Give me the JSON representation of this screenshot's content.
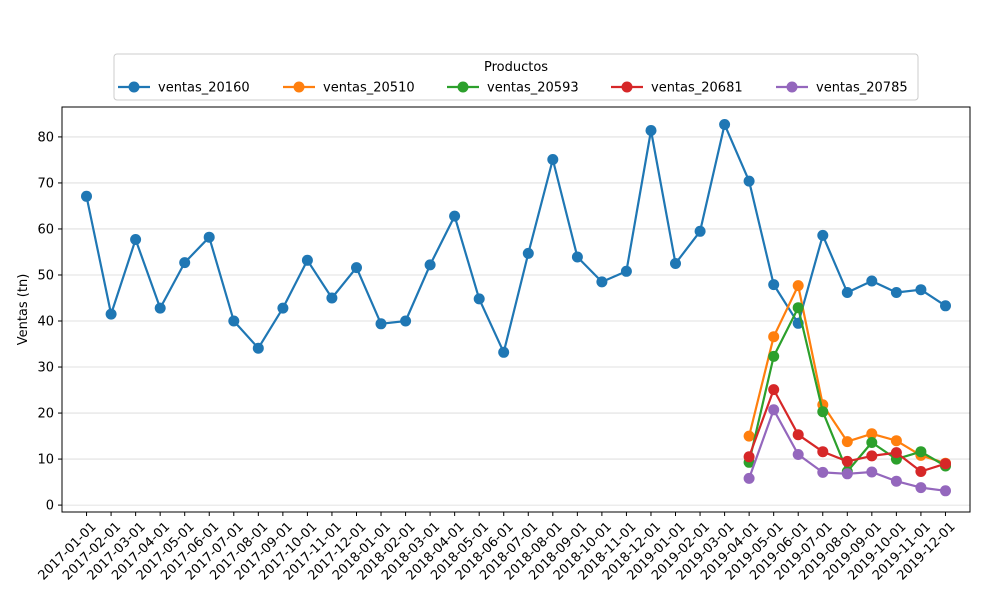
{
  "chart_data": {
    "type": "line",
    "xlabel": "",
    "ylabel": "Ventas (tn)",
    "ylim": [
      -1.5,
      86.5
    ],
    "yticks": [
      0,
      10,
      20,
      30,
      40,
      50,
      60,
      70,
      80
    ],
    "grid": "horizontal",
    "legend": {
      "title": "Productos",
      "placement": "top-center, outside plot"
    },
    "x": [
      "2017-01-01",
      "2017-02-01",
      "2017-03-01",
      "2017-04-01",
      "2017-05-01",
      "2017-06-01",
      "2017-07-01",
      "2017-08-01",
      "2017-09-01",
      "2017-10-01",
      "2017-11-01",
      "2017-12-01",
      "2018-01-01",
      "2018-02-01",
      "2018-03-01",
      "2018-04-01",
      "2018-05-01",
      "2018-06-01",
      "2018-07-01",
      "2018-08-01",
      "2018-09-01",
      "2018-10-01",
      "2018-11-01",
      "2018-12-01",
      "2019-01-01",
      "2019-02-01",
      "2019-03-01",
      "2019-04-01",
      "2019-05-01",
      "2019-06-01",
      "2019-07-01",
      "2019-08-01",
      "2019-09-01",
      "2019-10-01",
      "2019-11-01",
      "2019-12-01"
    ],
    "series": [
      {
        "name": "ventas_20160",
        "color": "#1f77b4",
        "values": [
          67.1,
          41.5,
          57.7,
          42.8,
          52.7,
          58.2,
          40.0,
          34.1,
          42.8,
          53.2,
          45.0,
          51.6,
          39.4,
          40.0,
          52.2,
          62.8,
          44.8,
          33.2,
          54.7,
          75.1,
          53.9,
          48.5,
          50.8,
          81.4,
          52.5,
          59.5,
          82.7,
          70.4,
          47.9,
          39.5,
          58.6,
          46.2,
          48.7,
          46.2,
          46.8,
          43.3
        ]
      },
      {
        "name": "ventas_20510",
        "color": "#ff7f0e",
        "values": [
          null,
          null,
          null,
          null,
          null,
          null,
          null,
          null,
          null,
          null,
          null,
          null,
          null,
          null,
          null,
          null,
          null,
          null,
          null,
          null,
          null,
          null,
          null,
          null,
          null,
          null,
          null,
          15.0,
          36.6,
          47.7,
          21.8,
          13.8,
          15.5,
          14.0,
          10.8,
          9.1
        ]
      },
      {
        "name": "ventas_20593",
        "color": "#2ca02c",
        "values": [
          null,
          null,
          null,
          null,
          null,
          null,
          null,
          null,
          null,
          null,
          null,
          null,
          null,
          null,
          null,
          null,
          null,
          null,
          null,
          null,
          null,
          null,
          null,
          null,
          null,
          null,
          null,
          9.3,
          32.3,
          42.9,
          20.3,
          7.3,
          13.6,
          10.0,
          11.6,
          8.5
        ]
      },
      {
        "name": "ventas_20681",
        "color": "#d62728",
        "values": [
          null,
          null,
          null,
          null,
          null,
          null,
          null,
          null,
          null,
          null,
          null,
          null,
          null,
          null,
          null,
          null,
          null,
          null,
          null,
          null,
          null,
          null,
          null,
          null,
          null,
          null,
          null,
          10.5,
          25.1,
          15.3,
          11.6,
          9.5,
          10.7,
          11.4,
          7.3,
          9.0
        ]
      },
      {
        "name": "ventas_20785",
        "color": "#9467bd",
        "values": [
          null,
          null,
          null,
          null,
          null,
          null,
          null,
          null,
          null,
          null,
          null,
          null,
          null,
          null,
          null,
          null,
          null,
          null,
          null,
          null,
          null,
          null,
          null,
          null,
          null,
          null,
          null,
          5.8,
          20.7,
          11.0,
          7.1,
          6.8,
          7.2,
          5.2,
          3.8,
          3.1
        ]
      }
    ]
  }
}
